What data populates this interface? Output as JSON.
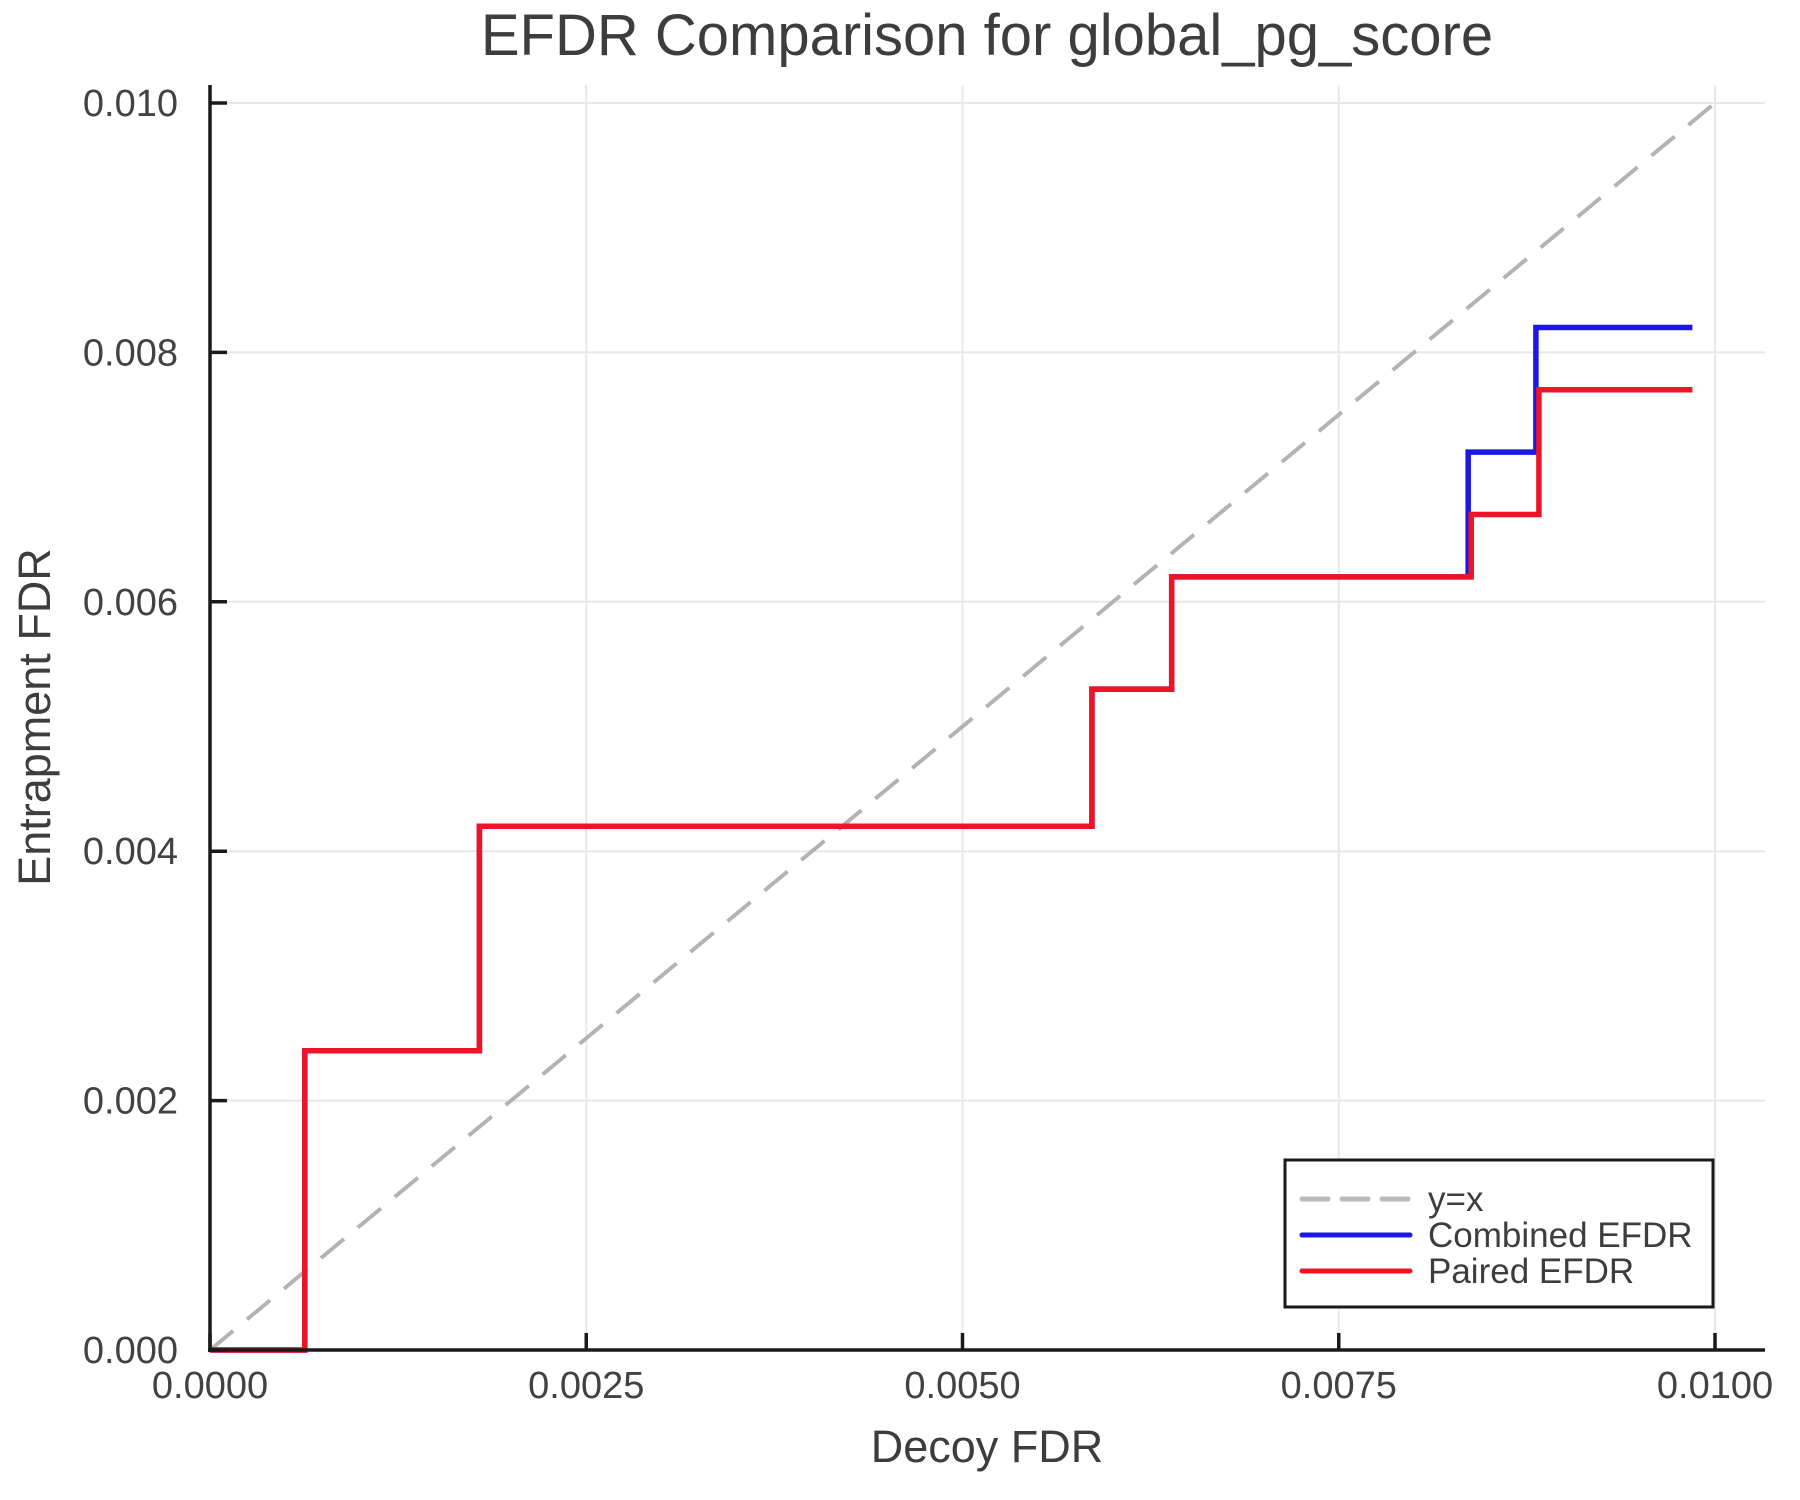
{
  "chart_data": {
    "type": "line",
    "subtype": "step-post",
    "title": "EFDR Comparison for global_pg_score",
    "xlabel": "Decoy FDR",
    "ylabel": "Entrapment FDR",
    "xlim": [
      0,
      0.01033
    ],
    "ylim": [
      0,
      0.01014
    ],
    "grid": true,
    "grid_color": "#e8e8e8",
    "spine_color": "#1a1a1a",
    "text_color": "#3d3d3d",
    "tick_label_color": "#424242",
    "x_ticks": [
      0,
      0.0025,
      0.005,
      0.0075,
      0.01
    ],
    "x_tick_labels": [
      "0.0000",
      "0.0025",
      "0.0050",
      "0.0075",
      "0.0100"
    ],
    "y_ticks": [
      0,
      0.002,
      0.004,
      0.006,
      0.008,
      0.01
    ],
    "y_tick_labels": [
      "0.000",
      "0.002",
      "0.004",
      "0.006",
      "0.008",
      "0.010"
    ],
    "reference_line": {
      "label": "y=x",
      "from": [
        0,
        0
      ],
      "to": [
        0.01,
        0.01
      ],
      "style": "dashed",
      "color": "#b3b3b3"
    },
    "series": [
      {
        "name": "Combined EFDR",
        "color": "#1b18e6",
        "style": "solid",
        "step": "post",
        "points": [
          [
            0,
            0
          ],
          [
            0.00063,
            0.0024
          ],
          [
            0.00179,
            0.0042
          ],
          [
            0.00586,
            0.0053
          ],
          [
            0.00639,
            0.0062
          ],
          [
            0.00836,
            0.0072
          ],
          [
            0.00881,
            0.0082
          ],
          [
            0.00985,
            0.0082
          ]
        ]
      },
      {
        "name": "Paired EFDR",
        "color": "#ee1426",
        "style": "solid",
        "step": "post",
        "points": [
          [
            0,
            0
          ],
          [
            0.00063,
            0.0024
          ],
          [
            0.00179,
            0.0042
          ],
          [
            0.00586,
            0.0053
          ],
          [
            0.00639,
            0.0062
          ],
          [
            0.00838,
            0.0067
          ],
          [
            0.00883,
            0.0077
          ],
          [
            0.00985,
            0.0077
          ]
        ]
      }
    ],
    "legend_position": "lower right",
    "legend": [
      {
        "label": "y=x",
        "color": "#b9b9b9",
        "dashed": true
      },
      {
        "label": "Combined EFDR",
        "color": "#1b18e6",
        "dashed": false
      },
      {
        "label": "Paired EFDR",
        "color": "#ee1426",
        "dashed": false
      }
    ]
  }
}
